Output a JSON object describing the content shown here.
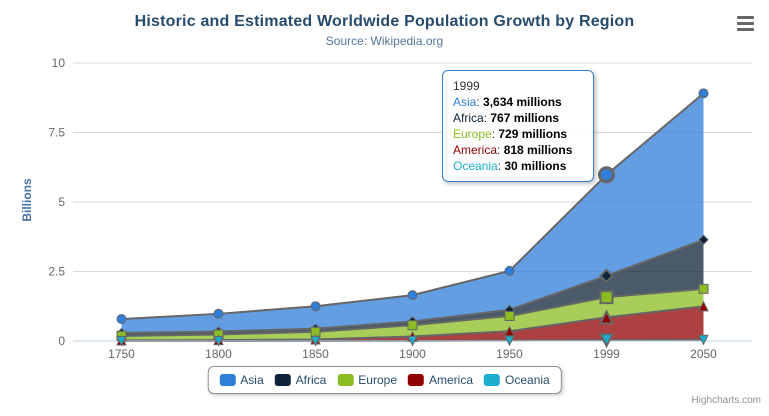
{
  "chart_data": {
    "type": "area",
    "stacking": "normal",
    "title": "Historic and Estimated Worldwide Population Growth by Region",
    "subtitle": "Source: Wikipedia.org",
    "categories": [
      "1750",
      "1800",
      "1850",
      "1900",
      "1950",
      "1999",
      "2050"
    ],
    "xlabel": "",
    "ylabel": "Billions",
    "ylim": [
      0,
      10
    ],
    "y_ticks": [
      0,
      2.5,
      5,
      7.5,
      10
    ],
    "y_tick_labels": [
      "0",
      "2.5",
      "5",
      "7.5",
      "10"
    ],
    "values_unit": "millions",
    "grid": true,
    "legend_position": "bottom",
    "series": [
      {
        "name": "Asia",
        "color": "#2f7ed8",
        "marker": "circle",
        "values": [
          502,
          635,
          809,
          947,
          1402,
          3634,
          5268
        ]
      },
      {
        "name": "Africa",
        "color": "#0d233a",
        "marker": "diamond",
        "values": [
          106,
          107,
          111,
          133,
          221,
          767,
          1766
        ]
      },
      {
        "name": "Europe",
        "color": "#8bbc21",
        "marker": "square",
        "values": [
          163,
          203,
          276,
          408,
          547,
          729,
          628
        ]
      },
      {
        "name": "America",
        "color": "#910000",
        "marker": "triangle",
        "values": [
          18,
          31,
          54,
          156,
          339,
          818,
          1201
        ]
      },
      {
        "name": "Oceania",
        "color": "#1aadce",
        "marker": "triangle-down",
        "values": [
          2,
          2,
          2,
          6,
          13,
          30,
          46
        ]
      }
    ],
    "fill_opacity": 0.75,
    "line_color": "#666666",
    "grid_color": "#d8d8d8",
    "axis_line_color": "#c0d0e0",
    "axis_label_color": "#666666"
  },
  "tooltip": {
    "category": "1999",
    "hover_index": 5,
    "border_color": "#2f7ed8",
    "rows": [
      {
        "name": "Asia",
        "color": "#2f7ed8",
        "value": "3,634 millions"
      },
      {
        "name": "Africa",
        "color": "#0d233a",
        "value": "767 millions"
      },
      {
        "name": "Europe",
        "color": "#8bbc21",
        "value": "729 millions"
      },
      {
        "name": "America",
        "color": "#910000",
        "value": "818 millions"
      },
      {
        "name": "Oceania",
        "color": "#1aadce",
        "value": "30 millions"
      }
    ]
  },
  "credits": "Highcharts.com",
  "ui_colors": {
    "title": "#274b6d",
    "subtitle": "#55759a",
    "y_axis_title": "#4572a7",
    "legend_text": "#274b6d",
    "burger_icon": "#666666",
    "credits_text": "#909090"
  }
}
